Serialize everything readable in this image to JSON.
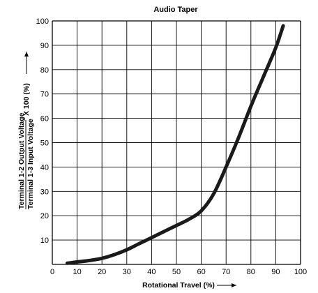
{
  "chart_data": {
    "type": "line",
    "title": "Audio Taper",
    "xlabel": "Rotational Travel (%)",
    "ylabel": {
      "numerator": "Terminal 1-2 Output Voltage",
      "denominator": "Terminal 1-3 Input Voltage",
      "suffix": "X 100 (%)"
    },
    "xlim": [
      0,
      100
    ],
    "ylim": [
      0,
      100
    ],
    "xticks": [
      "0",
      "10",
      "20",
      "30",
      "40",
      "50",
      "60",
      "70",
      "80",
      "90",
      "100"
    ],
    "yticks": [
      "10",
      "20",
      "30",
      "40",
      "50",
      "60",
      "70",
      "80",
      "90",
      "100"
    ],
    "grid": true,
    "series": [
      {
        "color": "#1a1a1a",
        "points": [
          [
            6,
            0.5
          ],
          [
            10,
            1
          ],
          [
            15,
            1.6
          ],
          [
            20,
            2.5
          ],
          [
            25,
            4
          ],
          [
            30,
            6
          ],
          [
            35,
            8.5
          ],
          [
            40,
            11
          ],
          [
            45,
            13.5
          ],
          [
            50,
            16
          ],
          [
            55,
            18.5
          ],
          [
            60,
            22
          ],
          [
            65,
            29
          ],
          [
            70,
            40
          ],
          [
            75,
            52
          ],
          [
            80,
            65
          ],
          [
            85,
            77
          ],
          [
            90,
            89
          ],
          [
            93,
            98
          ]
        ]
      }
    ]
  }
}
